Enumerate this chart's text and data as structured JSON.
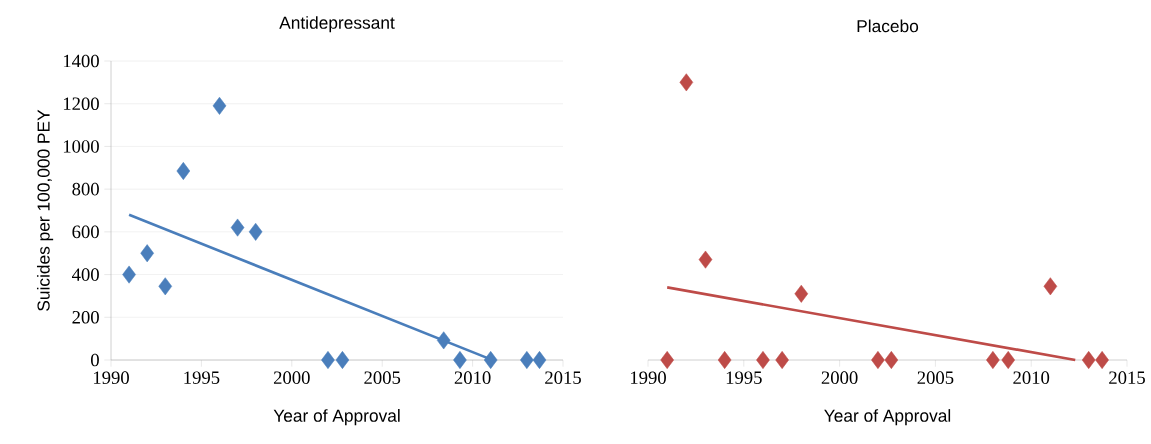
{
  "chart_data": [
    {
      "type": "scatter",
      "title": "Antidepressant",
      "xlabel": "Year of Approval",
      "ylabel": "Suicides per 100,000 PEY",
      "xlim": [
        1990,
        2015
      ],
      "ylim": [
        0,
        1400
      ],
      "xticks": [
        1990,
        1995,
        2000,
        2005,
        2010,
        2015
      ],
      "yticks": [
        0,
        200,
        400,
        600,
        800,
        1000,
        1200,
        1400
      ],
      "grid": "y",
      "series": [
        {
          "marker": "diamond",
          "color": "#4a7ebb",
          "x": [
            1991,
            1992,
            1993,
            1994,
            1996,
            1997,
            1998,
            2002,
            2002.8,
            2008.4,
            2009.3,
            2011,
            2013,
            2013.7
          ],
          "values": [
            400,
            500,
            345,
            885,
            1190,
            620,
            600,
            0,
            0,
            92,
            0,
            0,
            0,
            0
          ]
        },
        {
          "type": "line",
          "marker": "none",
          "color": "#4a7ebb",
          "x": [
            1991,
            2010.8
          ],
          "values": [
            680,
            10
          ]
        }
      ]
    },
    {
      "type": "scatter",
      "title": "Placebo",
      "xlabel": "Year of Approval",
      "xlim": [
        1990,
        2015
      ],
      "ylim": [
        0,
        1400
      ],
      "xticks": [
        1990,
        1995,
        2000,
        2005,
        2010,
        2015
      ],
      "yticks": [
        0,
        200,
        400,
        600,
        800,
        1000,
        1200,
        1400
      ],
      "grid": "y",
      "tick_labels": "x",
      "series": [
        {
          "marker": "diamond",
          "color": "#be4b48",
          "x": [
            1991,
            1992,
            1993,
            1994,
            1996,
            1997,
            1998,
            2002,
            2002.7,
            2008,
            2008.8,
            2011,
            2013,
            2013.7
          ],
          "values": [
            0,
            1300,
            470,
            0,
            0,
            0,
            310,
            0,
            0,
            0,
            0,
            345,
            0,
            0
          ]
        },
        {
          "type": "line",
          "marker": "none",
          "color": "#be4b48",
          "x": [
            1991,
            2012.3
          ],
          "values": [
            340,
            0
          ]
        }
      ]
    }
  ]
}
